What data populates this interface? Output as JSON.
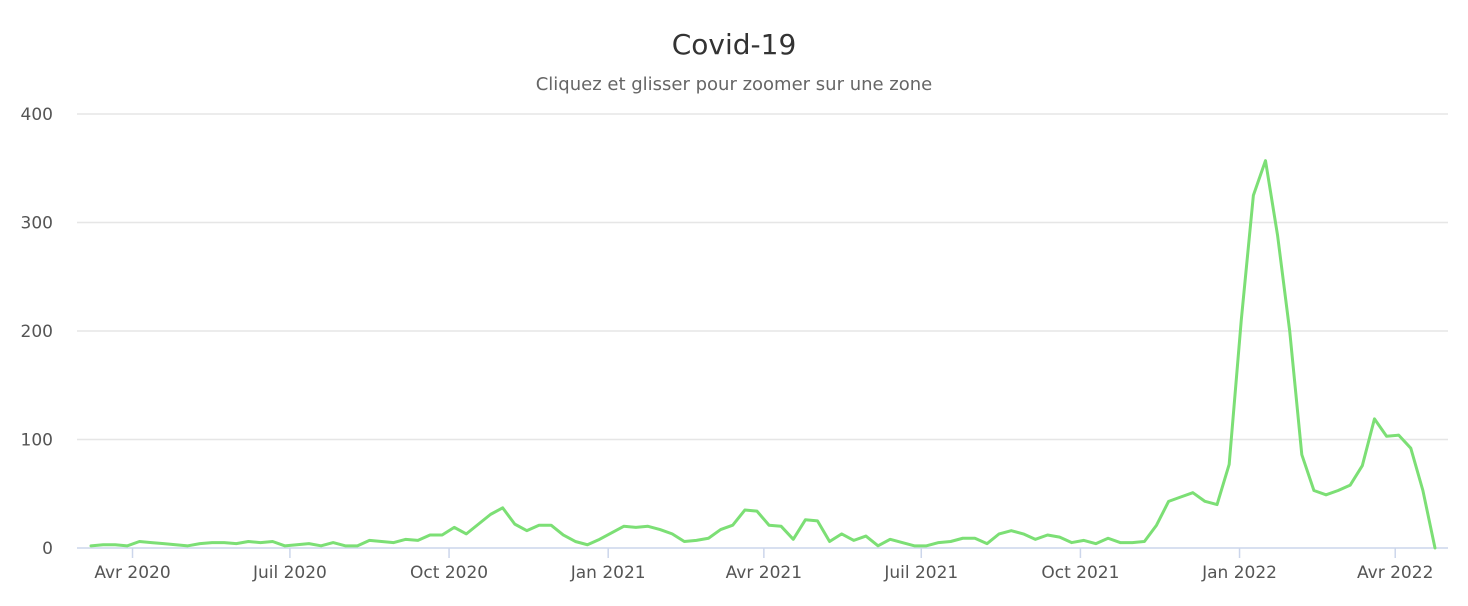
{
  "chart_data": {
    "type": "line",
    "title": "Covid-19",
    "subtitle": "Cliquez et glisser pour zoomer sur une zone",
    "xlabel": "",
    "ylabel": "",
    "x_range": [
      "2020-03-08",
      "2022-04-24"
    ],
    "ylim": [
      0,
      400
    ],
    "y_ticks": [
      0,
      100,
      200,
      300,
      400
    ],
    "x_ticks": [
      {
        "date": "2020-04-01",
        "label": "Avr 2020"
      },
      {
        "date": "2020-07-01",
        "label": "Juil 2020"
      },
      {
        "date": "2020-10-01",
        "label": "Oct 2020"
      },
      {
        "date": "2021-01-01",
        "label": "Jan 2021"
      },
      {
        "date": "2021-04-01",
        "label": "Avr 2021"
      },
      {
        "date": "2021-07-01",
        "label": "Juil 2021"
      },
      {
        "date": "2021-10-01",
        "label": "Oct 2021"
      },
      {
        "date": "2022-01-01",
        "label": "Jan 2022"
      },
      {
        "date": "2022-04-01",
        "label": "Avr 2022"
      }
    ],
    "grid": true,
    "legend": "none",
    "series": [
      {
        "color": "#7cdf75",
        "points": [
          [
            "2020-03-08",
            2
          ],
          [
            "2020-03-15",
            3
          ],
          [
            "2020-03-22",
            3
          ],
          [
            "2020-03-29",
            2
          ],
          [
            "2020-04-05",
            6
          ],
          [
            "2020-04-12",
            5
          ],
          [
            "2020-04-19",
            4
          ],
          [
            "2020-04-26",
            3
          ],
          [
            "2020-05-03",
            2
          ],
          [
            "2020-05-10",
            4
          ],
          [
            "2020-05-17",
            5
          ],
          [
            "2020-05-24",
            5
          ],
          [
            "2020-05-31",
            4
          ],
          [
            "2020-06-07",
            6
          ],
          [
            "2020-06-14",
            5
          ],
          [
            "2020-06-21",
            6
          ],
          [
            "2020-06-28",
            2
          ],
          [
            "2020-07-05",
            3
          ],
          [
            "2020-07-12",
            4
          ],
          [
            "2020-07-19",
            2
          ],
          [
            "2020-07-26",
            5
          ],
          [
            "2020-08-02",
            2
          ],
          [
            "2020-08-09",
            2
          ],
          [
            "2020-08-16",
            7
          ],
          [
            "2020-08-23",
            6
          ],
          [
            "2020-08-30",
            5
          ],
          [
            "2020-09-06",
            8
          ],
          [
            "2020-09-13",
            7
          ],
          [
            "2020-09-20",
            12
          ],
          [
            "2020-09-27",
            12
          ],
          [
            "2020-10-04",
            19
          ],
          [
            "2020-10-11",
            13
          ],
          [
            "2020-10-18",
            22
          ],
          [
            "2020-10-25",
            31
          ],
          [
            "2020-11-01",
            37
          ],
          [
            "2020-11-08",
            22
          ],
          [
            "2020-11-15",
            16
          ],
          [
            "2020-11-22",
            21
          ],
          [
            "2020-11-29",
            21
          ],
          [
            "2020-12-06",
            12
          ],
          [
            "2020-12-13",
            6
          ],
          [
            "2020-12-20",
            3
          ],
          [
            "2020-12-27",
            8
          ],
          [
            "2021-01-03",
            14
          ],
          [
            "2021-01-10",
            20
          ],
          [
            "2021-01-17",
            19
          ],
          [
            "2021-01-24",
            20
          ],
          [
            "2021-01-31",
            17
          ],
          [
            "2021-02-07",
            13
          ],
          [
            "2021-02-14",
            6
          ],
          [
            "2021-02-21",
            7
          ],
          [
            "2021-02-28",
            9
          ],
          [
            "2021-03-07",
            17
          ],
          [
            "2021-03-14",
            21
          ],
          [
            "2021-03-21",
            35
          ],
          [
            "2021-03-28",
            34
          ],
          [
            "2021-04-04",
            21
          ],
          [
            "2021-04-11",
            20
          ],
          [
            "2021-04-18",
            8
          ],
          [
            "2021-04-25",
            26
          ],
          [
            "2021-05-02",
            25
          ],
          [
            "2021-05-09",
            6
          ],
          [
            "2021-05-16",
            13
          ],
          [
            "2021-05-23",
            7
          ],
          [
            "2021-05-30",
            11
          ],
          [
            "2021-06-06",
            2
          ],
          [
            "2021-06-13",
            8
          ],
          [
            "2021-06-20",
            5
          ],
          [
            "2021-06-27",
            2
          ],
          [
            "2021-07-04",
            2
          ],
          [
            "2021-07-11",
            5
          ],
          [
            "2021-07-18",
            6
          ],
          [
            "2021-07-25",
            9
          ],
          [
            "2021-08-01",
            9
          ],
          [
            "2021-08-08",
            4
          ],
          [
            "2021-08-15",
            13
          ],
          [
            "2021-08-22",
            16
          ],
          [
            "2021-08-29",
            13
          ],
          [
            "2021-09-05",
            8
          ],
          [
            "2021-09-12",
            12
          ],
          [
            "2021-09-19",
            10
          ],
          [
            "2021-09-26",
            5
          ],
          [
            "2021-10-03",
            7
          ],
          [
            "2021-10-10",
            4
          ],
          [
            "2021-10-17",
            9
          ],
          [
            "2021-10-24",
            5
          ],
          [
            "2021-10-31",
            5
          ],
          [
            "2021-11-07",
            6
          ],
          [
            "2021-11-14",
            21
          ],
          [
            "2021-11-21",
            43
          ],
          [
            "2021-11-28",
            47
          ],
          [
            "2021-12-05",
            51
          ],
          [
            "2021-12-12",
            43
          ],
          [
            "2021-12-19",
            40
          ],
          [
            "2021-12-26",
            77
          ],
          [
            "2022-01-02",
            210
          ],
          [
            "2022-01-09",
            325
          ],
          [
            "2022-01-16",
            357
          ],
          [
            "2022-01-23",
            288
          ],
          [
            "2022-01-30",
            200
          ],
          [
            "2022-02-06",
            86
          ],
          [
            "2022-02-13",
            53
          ],
          [
            "2022-02-20",
            49
          ],
          [
            "2022-02-27",
            53
          ],
          [
            "2022-03-06",
            58
          ],
          [
            "2022-03-13",
            76
          ],
          [
            "2022-03-20",
            119
          ],
          [
            "2022-03-27",
            103
          ],
          [
            "2022-04-03",
            104
          ],
          [
            "2022-04-10",
            92
          ],
          [
            "2022-04-17",
            53
          ],
          [
            "2022-04-24",
            0
          ]
        ]
      }
    ]
  }
}
